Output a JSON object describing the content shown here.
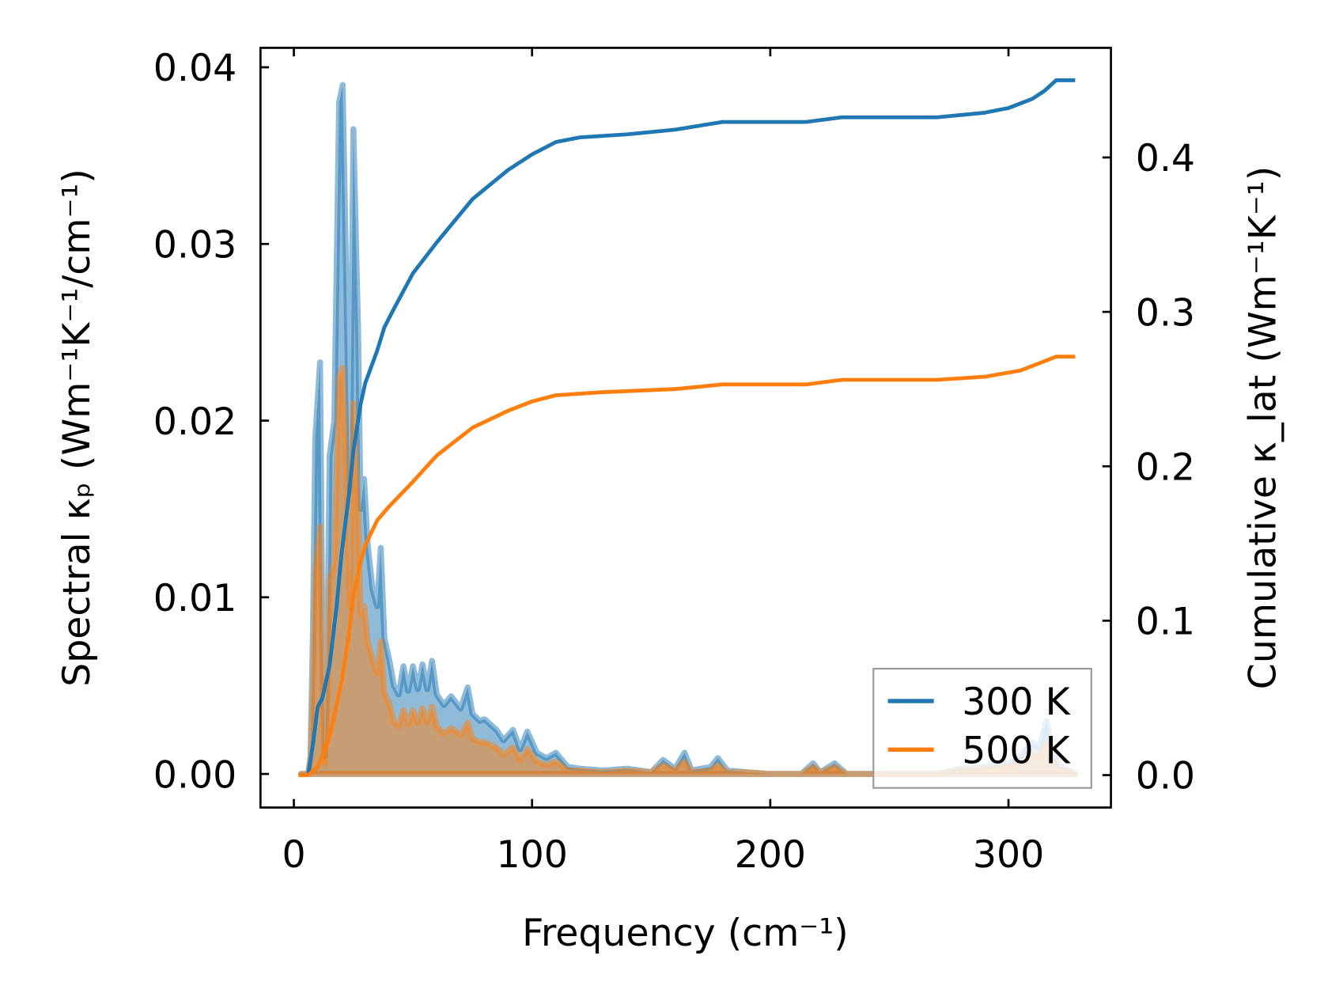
{
  "chart_data": {
    "type": "line",
    "xlabel": "Frequency (cm⁻¹)",
    "ylabel_left": "Spectral κₚ (Wm⁻¹K⁻¹/cm⁻¹)",
    "ylabel_right": "Cumulative κ_lat (Wm⁻¹K⁻¹)",
    "xlim": [
      -14,
      343
    ],
    "ylim_left": [
      -0.0019,
      0.0411
    ],
    "ylim_right": [
      -0.021,
      0.471
    ],
    "xticks": [
      0,
      100,
      200,
      300
    ],
    "xtick_labels": [
      "0",
      "100",
      "200",
      "300"
    ],
    "yticks_left": [
      0,
      0.01,
      0.02,
      0.03,
      0.04
    ],
    "ytick_labels_left": [
      "0.00",
      "0.01",
      "0.02",
      "0.03",
      "0.04"
    ],
    "yticks_right": [
      0,
      0.1,
      0.2,
      0.3,
      0.4
    ],
    "ytick_labels_right": [
      "0.0",
      "0.1",
      "0.2",
      "0.3",
      "0.4"
    ],
    "legend": {
      "position": "lower-right",
      "entries": [
        "300 K",
        "500 K"
      ]
    },
    "colors": {
      "300 K": "#1f77b4",
      "500 K": "#ff7f0e"
    },
    "series": [
      {
        "name": "300 K",
        "kind": "spectral",
        "x": [
          3,
          6,
          7,
          8,
          9,
          11,
          12,
          13,
          14,
          15,
          17,
          19,
          20.5,
          22,
          23.5,
          25,
          27,
          28,
          29.5,
          31,
          33,
          35,
          36.5,
          38,
          40,
          42,
          44,
          46,
          48,
          50,
          52,
          54,
          56,
          58,
          60,
          63,
          66,
          70,
          73,
          75,
          78,
          80,
          85,
          88,
          92,
          95,
          98,
          102,
          106,
          110,
          115,
          120,
          130,
          140,
          150,
          155,
          160,
          164,
          167,
          175,
          178,
          182,
          190,
          200,
          213,
          218,
          221,
          227,
          232,
          270,
          280,
          290,
          300,
          305,
          310,
          313,
          316,
          318,
          321,
          328
        ],
        "y": [
          0,
          0,
          0.001,
          0.008,
          0.019,
          0.0233,
          0.008,
          0.001,
          0.006,
          0.018,
          0.02,
          0.038,
          0.039,
          0.028,
          0.016,
          0.0365,
          0.025,
          0.015,
          0.0167,
          0.013,
          0.0105,
          0.0095,
          0.0128,
          0.0077,
          0.0065,
          0.005,
          0.0045,
          0.0061,
          0.0047,
          0.0061,
          0.0048,
          0.0062,
          0.0048,
          0.0064,
          0.0045,
          0.0039,
          0.0044,
          0.0037,
          0.0049,
          0.0034,
          0.003,
          0.0031,
          0.0025,
          0.0019,
          0.0025,
          0.0014,
          0.0024,
          0.0012,
          0.0009,
          0.0012,
          0.0004,
          0.0003,
          0.0002,
          0.0003,
          0.0001,
          0.0008,
          0.0003,
          0.0012,
          0.0002,
          0.0004,
          0.0009,
          0.0002,
          0.0001,
          0,
          0,
          0.0006,
          0.0001,
          0.0006,
          0,
          0,
          0.0003,
          0.0004,
          0.0006,
          0.001,
          0.0018,
          0.0015,
          0.003,
          0.0015,
          0.0005,
          0
        ]
      },
      {
        "name": "500 K",
        "kind": "spectral",
        "x": [
          3,
          6,
          7,
          8,
          9,
          11,
          12,
          13,
          14,
          15,
          17,
          19,
          20.5,
          22,
          23.5,
          25,
          27,
          28,
          29.5,
          31,
          33,
          35,
          36.5,
          38,
          40,
          42,
          44,
          46,
          48,
          50,
          52,
          54,
          56,
          58,
          60,
          63,
          66,
          70,
          73,
          75,
          78,
          80,
          85,
          88,
          92,
          95,
          98,
          102,
          106,
          110,
          115,
          120,
          130,
          140,
          150,
          155,
          160,
          164,
          167,
          175,
          178,
          182,
          190,
          200,
          213,
          218,
          221,
          227,
          232,
          270,
          280,
          290,
          300,
          305,
          310,
          313,
          316,
          318,
          321,
          328
        ],
        "y": [
          0,
          0,
          0.0006,
          0.005,
          0.0115,
          0.014,
          0.005,
          0.0006,
          0.0036,
          0.011,
          0.012,
          0.0225,
          0.023,
          0.017,
          0.0095,
          0.021,
          0.015,
          0.009,
          0.0095,
          0.0075,
          0.0065,
          0.0057,
          0.0075,
          0.0046,
          0.004,
          0.003,
          0.0027,
          0.0036,
          0.0028,
          0.0036,
          0.0029,
          0.0037,
          0.0029,
          0.0038,
          0.0027,
          0.0023,
          0.0026,
          0.0022,
          0.0029,
          0.002,
          0.0018,
          0.0018,
          0.0015,
          0.0011,
          0.0015,
          0.0008,
          0.0014,
          0.0007,
          0.0005,
          0.0007,
          0.0002,
          0.0002,
          0.0001,
          0.0002,
          0.0001,
          0.0005,
          0.0002,
          0.0007,
          0.0001,
          0.0002,
          0.0005,
          0.0001,
          0.0001,
          0,
          0,
          0.0004,
          0.0001,
          0.0004,
          0,
          0,
          0.0002,
          0.0003,
          0.0004,
          0.0006,
          0.0011,
          0.0009,
          0.0018,
          0.0009,
          0.0003,
          0
        ]
      },
      {
        "name": "300 K",
        "kind": "cumulative",
        "x": [
          2,
          6,
          8,
          10,
          12,
          15,
          18,
          20,
          23,
          25,
          28,
          30,
          35,
          38,
          42,
          50,
          60,
          75,
          90,
          100,
          110,
          120,
          140,
          160,
          180,
          215,
          230,
          270,
          290,
          300,
          310,
          315,
          320,
          328
        ],
        "y": [
          0,
          0,
          0.02,
          0.044,
          0.05,
          0.071,
          0.11,
          0.143,
          0.18,
          0.21,
          0.24,
          0.254,
          0.275,
          0.29,
          0.302,
          0.325,
          0.345,
          0.373,
          0.392,
          0.402,
          0.41,
          0.413,
          0.415,
          0.418,
          0.423,
          0.423,
          0.426,
          0.426,
          0.429,
          0.432,
          0.438,
          0.443,
          0.45,
          0.45
        ]
      },
      {
        "name": "500 K",
        "kind": "cumulative",
        "x": [
          2,
          6,
          10,
          15,
          20,
          23,
          25,
          28,
          30,
          35,
          40,
          50,
          60,
          75,
          90,
          100,
          110,
          130,
          160,
          180,
          215,
          230,
          270,
          290,
          305,
          315,
          320,
          328
        ],
        "y": [
          0,
          0,
          0.005,
          0.025,
          0.06,
          0.09,
          0.116,
          0.138,
          0.149,
          0.165,
          0.174,
          0.19,
          0.207,
          0.225,
          0.236,
          0.242,
          0.246,
          0.248,
          0.25,
          0.253,
          0.253,
          0.256,
          0.256,
          0.258,
          0.262,
          0.268,
          0.271,
          0.271
        ]
      }
    ]
  }
}
